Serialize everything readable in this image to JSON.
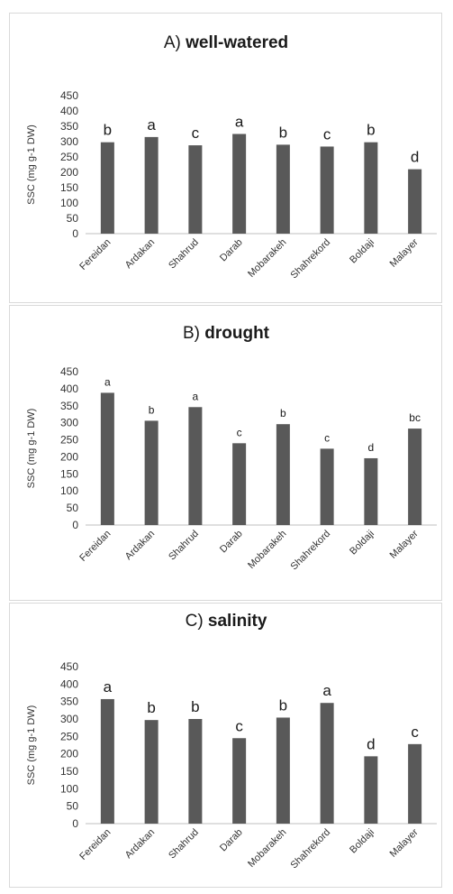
{
  "chart_data": [
    {
      "type": "bar",
      "title_prefix": "A)",
      "title_main": "well-watered",
      "ylabel": "SSC (mg g-1 DW)",
      "ylim": [
        0,
        450
      ],
      "yticks": [
        "0",
        "50",
        "100",
        "150",
        "200",
        "250",
        "300",
        "350",
        "400",
        "450"
      ],
      "categories": [
        "Fereidan",
        "Ardakan",
        "Shahrud",
        "Darab",
        "Mobarakeh",
        "Shahrekord",
        "Boldaji",
        "Malayer"
      ],
      "values": [
        298,
        315,
        288,
        325,
        290,
        284,
        298,
        210
      ],
      "letters": [
        "b",
        "a",
        "c",
        "a",
        "b",
        "c",
        "b",
        "d"
      ],
      "bar_color": "#595959",
      "grid": false,
      "legend": "none"
    },
    {
      "type": "bar",
      "title_prefix": "B)",
      "title_main": "drought",
      "ylabel": "SSC (mg g-1 DW)",
      "ylim": [
        0,
        450
      ],
      "yticks": [
        "0",
        "50",
        "100",
        "150",
        "200",
        "250",
        "300",
        "350",
        "400",
        "450"
      ],
      "categories": [
        "Fereidan",
        "Ardakan",
        "Shahrud",
        "Darab",
        "Mobarakeh",
        "Shahrekord",
        "Boldaji",
        "Malayer"
      ],
      "values": [
        388,
        306,
        346,
        240,
        296,
        224,
        196,
        283
      ],
      "letters": [
        "a",
        "b",
        "a",
        "c",
        "b",
        "c",
        "d",
        "bc"
      ],
      "bar_color": "#595959",
      "grid": false,
      "legend": "none"
    },
    {
      "type": "bar",
      "title_prefix": "C)",
      "title_main": "salinity",
      "ylabel": "SSC (mg g-1 DW)",
      "ylim": [
        0,
        450
      ],
      "yticks": [
        "0",
        "50",
        "100",
        "150",
        "200",
        "250",
        "300",
        "350",
        "400",
        "450"
      ],
      "categories": [
        "Fereidan",
        "Ardakan",
        "Shahrud",
        "Darab",
        "Mobarakeh",
        "Shahrekord",
        "Boldaji",
        "Malayer"
      ],
      "values": [
        357,
        297,
        300,
        245,
        304,
        346,
        193,
        228
      ],
      "letters": [
        "a",
        "b",
        "b",
        "c",
        "b",
        "a",
        "d",
        "c"
      ],
      "bar_color": "#595959",
      "grid": false,
      "legend": "none"
    }
  ]
}
